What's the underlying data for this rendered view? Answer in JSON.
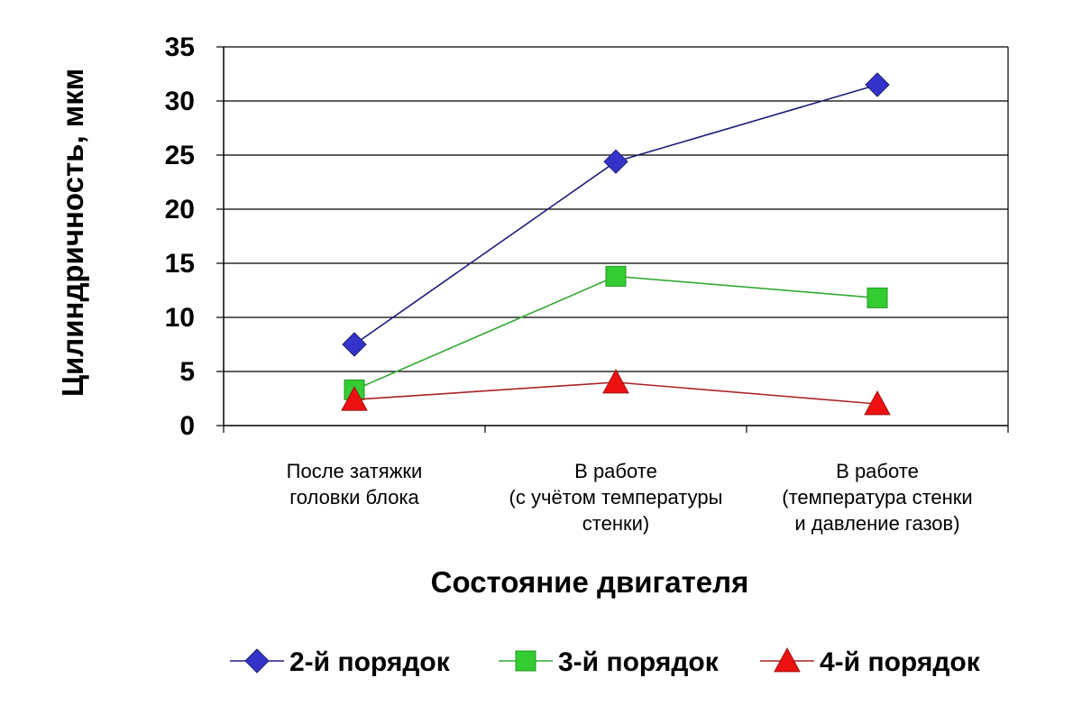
{
  "chart_data": {
    "type": "line",
    "title": "",
    "xlabel": "Состояние двигателя",
    "ylabel": "Цилиндричность, мкм",
    "ylim": [
      0,
      35
    ],
    "yticks": [
      0,
      5,
      10,
      15,
      20,
      25,
      30,
      35
    ],
    "grid": "horizontal",
    "legend_position": "bottom",
    "categories": [
      [
        "После затяжки",
        "головки блока"
      ],
      [
        "В работе",
        "(с учётом температуры",
        "стенки)"
      ],
      [
        "В работе",
        "(температура стенки",
        "и давление газов)"
      ]
    ],
    "series": [
      {
        "name": "2-й порядок",
        "values": [
          7.5,
          24.4,
          31.5
        ],
        "color": "#3333cc",
        "line_color": "#1c1c7a",
        "marker": "diamond"
      },
      {
        "name": "3-й порядок",
        "values": [
          3.3,
          13.8,
          11.8
        ],
        "color": "#33cc33",
        "line_color": "#33aa33",
        "marker": "square"
      },
      {
        "name": "4-й порядок",
        "values": [
          2.4,
          4.0,
          2.0
        ],
        "color": "#ee1111",
        "line_color": "#aa2222",
        "marker": "triangle"
      }
    ]
  }
}
